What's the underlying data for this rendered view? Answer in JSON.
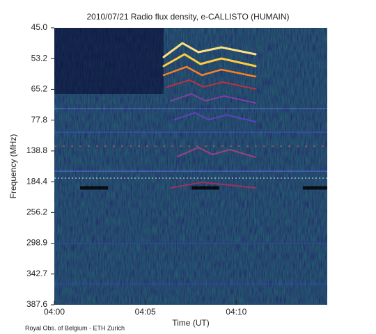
{
  "chart_data": {
    "type": "spectrogram",
    "title": "2010/07/21  Radio flux density, e-CALLISTO (HUMAIN)",
    "x_label": "Time (UT)",
    "y_label": "Frequency (MHz)",
    "footer": "Royal Obs. of Belgium - ETH Zurich",
    "xlim": [
      "04:00",
      "04:15"
    ],
    "xticks": [
      "04:00",
      "04:05",
      "04:10"
    ],
    "yticks": [
      {
        "value": 45,
        "label": "45.0"
      },
      53.2,
      65.2,
      77.8,
      138.8,
      184.4,
      256.2,
      298.9,
      342.7,
      387.6
    ]
  }
}
